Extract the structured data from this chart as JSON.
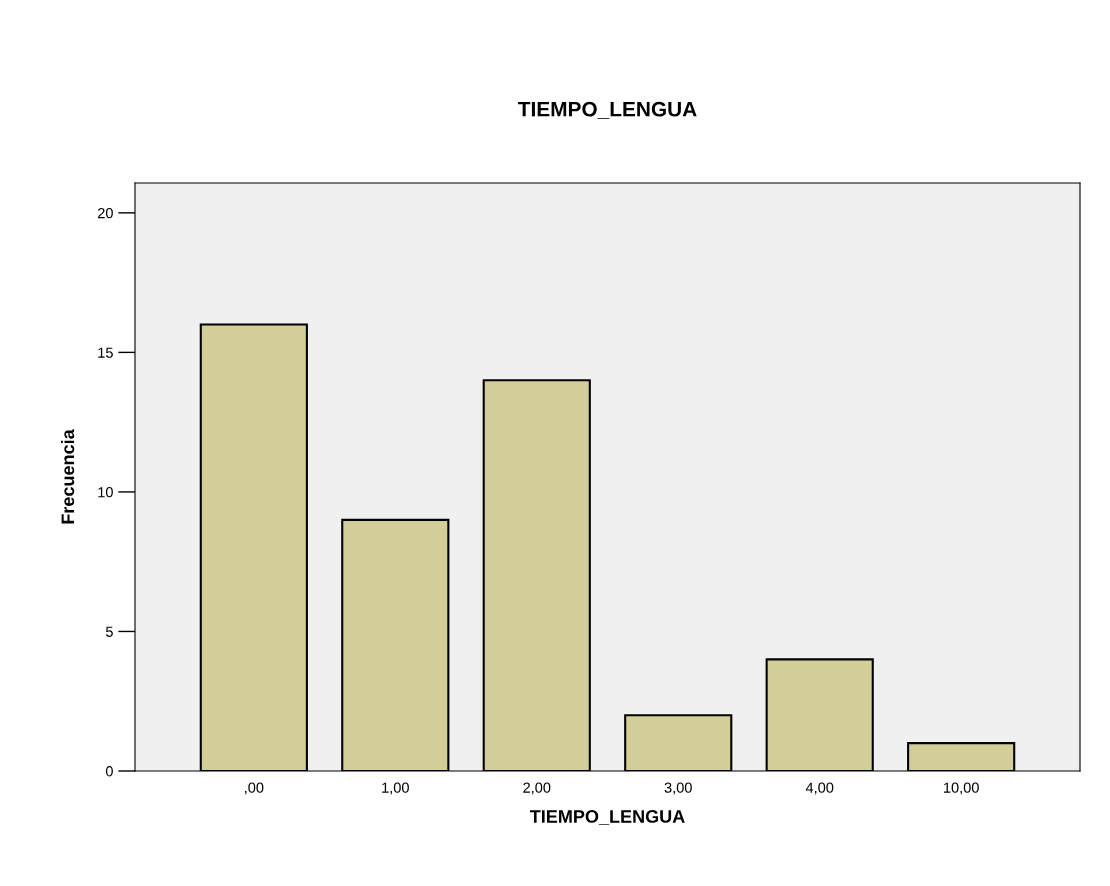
{
  "chart_data": {
    "type": "bar",
    "title": "TIEMPO_LENGUA",
    "xlabel": "TIEMPO_LENGUA",
    "ylabel": "Frecuencia",
    "categories": [
      ",00",
      "1,00",
      "2,00",
      "3,00",
      "4,00",
      "10,00"
    ],
    "values": [
      16,
      9,
      14,
      2,
      4,
      1
    ],
    "color": "#d3ce97",
    "ylim": [
      0,
      21.07
    ],
    "yticks": [
      0,
      5,
      10,
      15,
      20
    ],
    "grid": false,
    "legend": false
  }
}
